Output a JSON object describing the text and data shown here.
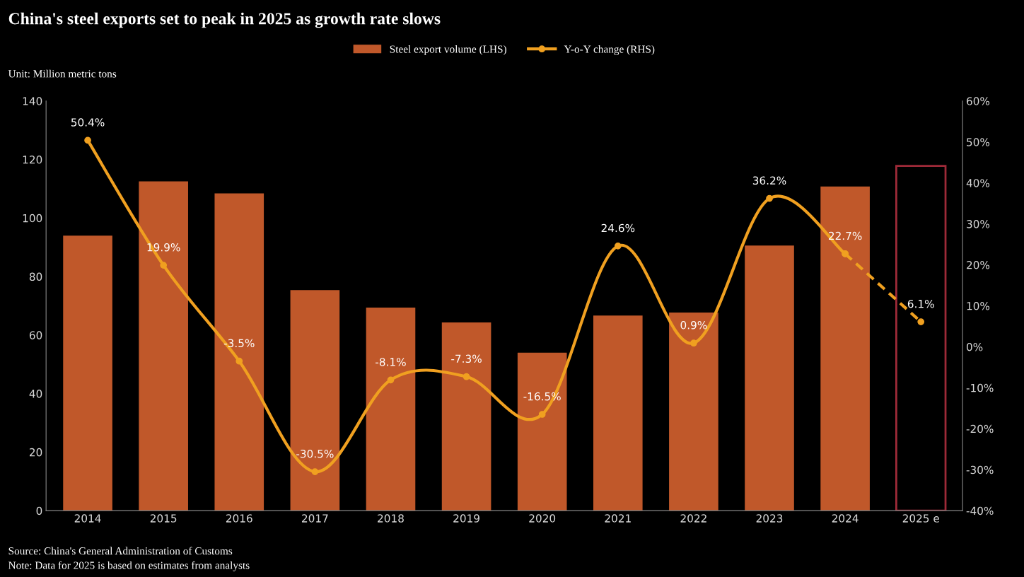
{
  "chart_data": {
    "type": "bar",
    "title": "China's steel exports set to peak in 2025 as growth rate slows",
    "categories": [
      "2014",
      "2015",
      "2016",
      "2017",
      "2018",
      "2019",
      "2020",
      "2021",
      "2022",
      "2023",
      "2024",
      "2025 e"
    ],
    "series": [
      {
        "name": "Steel export volume (LHS)",
        "color": "#c0582a",
        "values": [
          94,
          112.5,
          108.4,
          75.4,
          69.4,
          64.3,
          54,
          66.7,
          67.7,
          90.6,
          110.8,
          null
        ]
      },
      {
        "color": "#9e2a38",
        "line_style": "solid",
        "values": [
          null,
          null,
          null,
          null,
          null,
          null,
          null,
          null,
          null,
          null,
          null,
          117.8
        ]
      },
      {
        "name": "Y-o-Y change (RHS)",
        "type": "line",
        "axis": "y2",
        "color": "#f0a020",
        "marker": "circle",
        "values": [
          50.4,
          19.9,
          -3.5,
          -30.5,
          -8.1,
          -7.3,
          -16.5,
          24.6,
          0.9,
          36.2,
          22.7,
          null
        ],
        "value_labels": [
          "50.4%",
          "19.9%",
          "-3.5%",
          "-30.5%",
          "-8.1%",
          "-7.3%",
          "-16.5%",
          "24.6%",
          "0.9%",
          "36.2%",
          "22.7%",
          null
        ]
      },
      {
        "type": "line",
        "axis": "y2",
        "color": "#f0a020",
        "marker": "circle",
        "line_style": "dashed",
        "values": [
          null,
          null,
          null,
          null,
          null,
          null,
          null,
          null,
          null,
          null,
          22.7,
          6.1
        ],
        "value_labels": [
          null,
          null,
          null,
          null,
          null,
          null,
          null,
          null,
          null,
          null,
          null,
          "6.1%"
        ]
      }
    ],
    "ylim": [
      0,
      140
    ],
    "yticks": [
      0,
      20,
      40,
      60,
      80,
      100,
      120,
      140
    ],
    "y2lim": [
      -40,
      60
    ],
    "y2ticks": [
      {
        "value": -40,
        "label": "-40%"
      },
      {
        "value": -30,
        "label": "-30%"
      },
      {
        "value": -20,
        "label": "-20%"
      },
      {
        "value": -10,
        "label": "-10%"
      },
      {
        "value": 0,
        "label": "0%"
      },
      {
        "value": 10,
        "label": "10%"
      },
      {
        "value": 20,
        "label": "20%"
      },
      {
        "value": 30,
        "label": "30%"
      },
      {
        "value": 40,
        "label": "40%"
      },
      {
        "value": 50,
        "label": "50%"
      },
      {
        "value": 60,
        "label": "60%"
      }
    ],
    "grid": false,
    "legend": "top",
    "annotations": [
      "Unit: Million metric tons",
      "Source: China's General Administration of Customs",
      "Note: Data for 2025 is based on estimates from analysts"
    ]
  }
}
